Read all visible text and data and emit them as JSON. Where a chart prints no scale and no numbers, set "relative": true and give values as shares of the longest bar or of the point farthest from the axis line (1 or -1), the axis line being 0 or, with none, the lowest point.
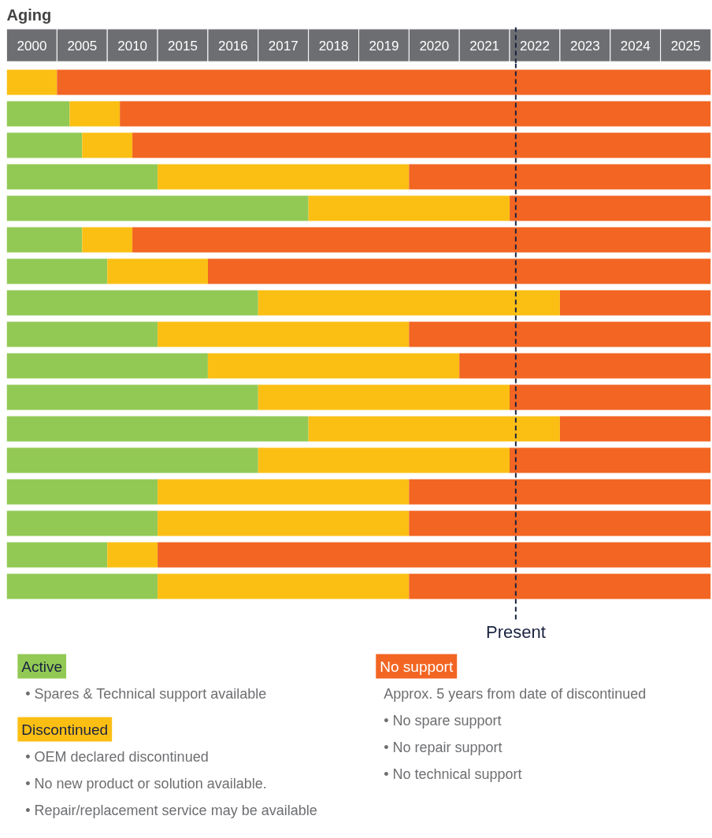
{
  "chart_data": {
    "type": "bar",
    "orientation": "horizontal",
    "stacked": true,
    "relative": true,
    "title": "Aging",
    "categories": [
      null,
      null,
      null,
      null,
      null,
      null,
      null,
      null,
      null,
      null,
      null,
      null,
      null,
      null,
      null,
      null,
      null
    ],
    "legend": "bottom",
    "series": [
      {
        "name": "Active",
        "color": "#92c955",
        "values": [
          0,
          0.0893,
          0.1071,
          0.2143,
          0.4286,
          0.1071,
          0.1429,
          0.3571,
          0.2143,
          0.2857,
          0.3571,
          0.4286,
          0.3571,
          0.2143,
          0.2143,
          0.1429,
          0.2143
        ]
      },
      {
        "name": "Discontinued",
        "color": "#fbbf14",
        "values": [
          0.0714,
          0.0714,
          0.0714,
          0.3571,
          0.2857,
          0.0714,
          0.1429,
          0.4286,
          0.3571,
          0.3571,
          0.3571,
          0.3571,
          0.3571,
          0.3571,
          0.3571,
          0.0714,
          0.3571
        ]
      },
      {
        "name": "No support",
        "color": "#f26522",
        "values": [
          0.9286,
          0.8393,
          0.8214,
          0.4286,
          0.2857,
          0.8214,
          0.7142,
          0.2143,
          0.4286,
          0.3571,
          0.2857,
          0.2143,
          0.2857,
          0.4286,
          0.4286,
          0.7857,
          0.4286
        ]
      }
    ],
    "ref_lines": [
      {
        "axis": "x",
        "value": 0.723,
        "label": "Present",
        "color": "#1a2340",
        "line_style": "dashed"
      }
    ],
    "annotations": [
      "2000",
      "2005",
      "2010",
      "2015",
      "2016",
      "2017",
      "2018",
      "2019",
      "2020",
      "2021",
      "2022",
      "2023",
      "2024",
      "2025",
      "• Spares & Technical support available",
      "• OEM declared discontinued",
      "• No new product or solution available.",
      "• Repair/replacement service may be available",
      "Approx. 5 years from date of discontinued",
      "• No spare support",
      "• No repair support",
      "• No technical support"
    ]
  }
}
